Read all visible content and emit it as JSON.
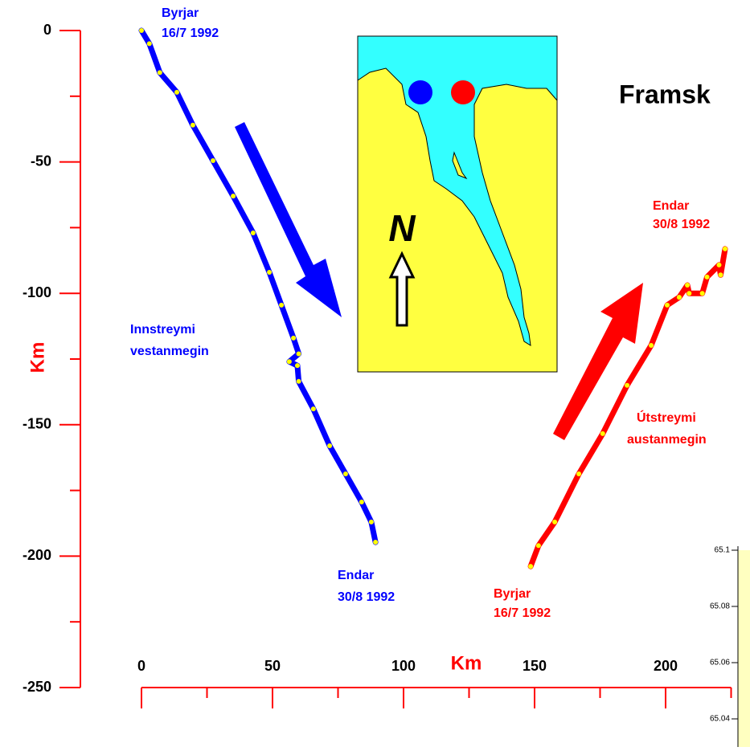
{
  "chart_data": [
    {
      "type": "line",
      "title": "Framsk",
      "x_label": "Km",
      "y_label": "Km",
      "xlim": [
        0,
        225
      ],
      "ylim": [
        -250,
        0
      ],
      "xticks": [
        0,
        50,
        100,
        150,
        200
      ],
      "xticks_minor": [
        25,
        75,
        125,
        175,
        225
      ],
      "yticks": [
        0,
        -50,
        -100,
        -150,
        -200,
        -250
      ],
      "yticks_minor": [
        -25,
        -75,
        -125,
        -175,
        -225
      ],
      "axis_color": "#ff0000",
      "marker_color": "#ffff00",
      "series": [
        {
          "name": "Innstreymi vestanmegin",
          "color": "#0000ff",
          "x": [
            0,
            3,
            7,
            13.5,
            19.6,
            27.3,
            35,
            42.6,
            48.8,
            53.4,
            58,
            60,
            56.4,
            59.5,
            60,
            65.6,
            71.8,
            77.9,
            84,
            87.7,
            89.3
          ],
          "values": [
            0,
            -5,
            -16,
            -23.5,
            -36,
            -49.5,
            -63,
            -77,
            -92,
            -104.5,
            -117,
            -123,
            -126,
            -127.5,
            -133.5,
            -144,
            -158,
            -168.7,
            -179.4,
            -187,
            -194.7
          ]
        },
        {
          "name": "Útstreymi austanmegin",
          "color": "#ff0000",
          "x": [
            148.5,
            151.5,
            157.7,
            166.9,
            176,
            185.3,
            194.5,
            200.6,
            205.2,
            208.3,
            209,
            214,
            215.8,
            220.4,
            221,
            222.7
          ],
          "values": [
            -203.9,
            -196,
            -187,
            -168.7,
            -153.4,
            -135,
            -119.8,
            -104.5,
            -101.5,
            -96.9,
            -100,
            -100,
            -93.8,
            -89.2,
            -93,
            -83.1
          ]
        }
      ],
      "annotations": [
        "Byrjar",
        "16/7 1992",
        "Endar",
        "30/8 1992",
        "Innstreymi",
        "vestanmegin",
        "Endar",
        "30/8 1992",
        "Byrjar",
        "16/7 1992",
        "Útstreymi",
        "austanmegin"
      ],
      "map_north_label": "N"
    },
    {
      "type": "line",
      "ylim": [
        65.03,
        65.1
      ],
      "yticks": [
        65.1,
        65.08,
        65.06,
        65.04
      ]
    }
  ]
}
